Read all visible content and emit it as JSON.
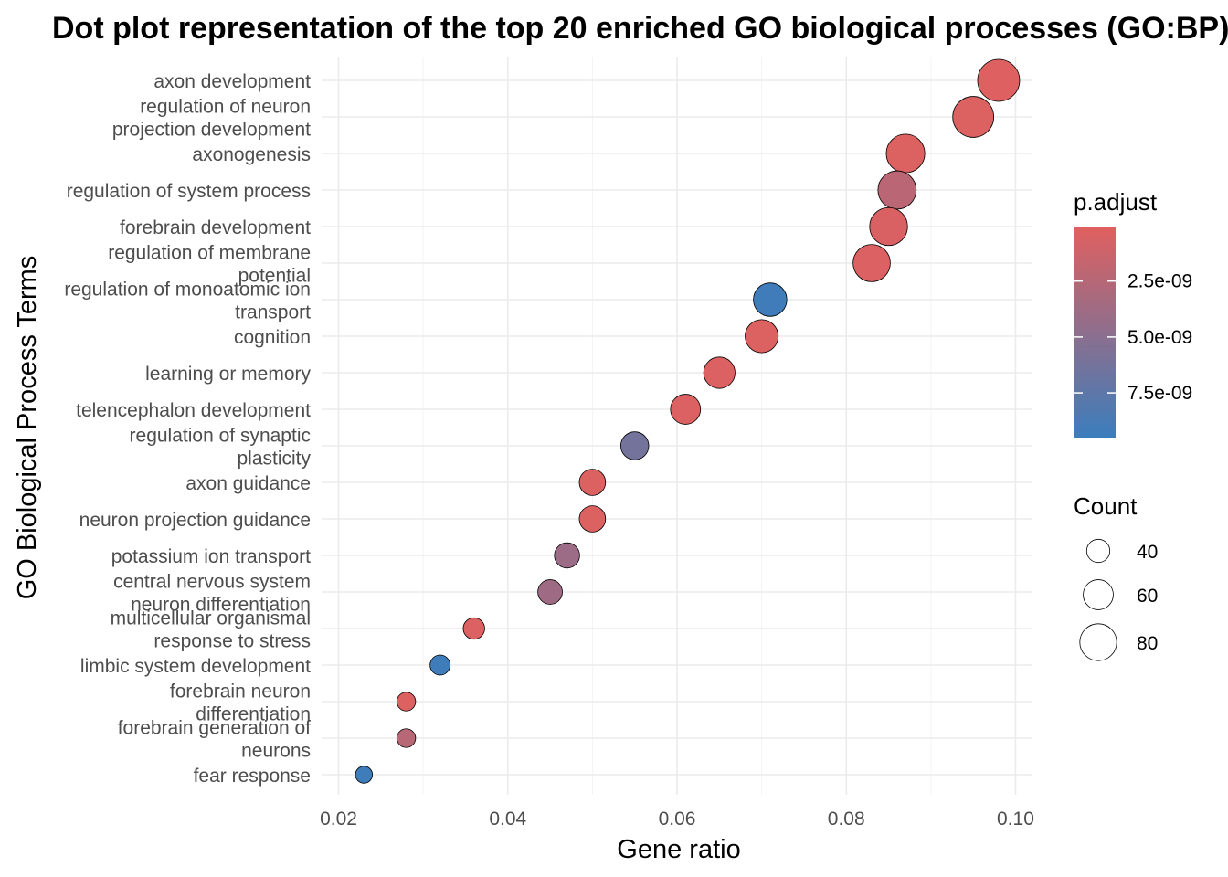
{
  "chart_data": {
    "type": "scatter",
    "title": "Dot plot representation of the top 20 enriched GO biological processes (GO:BP)",
    "xlabel": "Gene ratio",
    "ylabel": "GO Biological Process Terms",
    "xlim": [
      0.018,
      0.102
    ],
    "x_ticks": [
      "0.02",
      "0.04",
      "0.06",
      "0.08",
      "0.10"
    ],
    "grid": true,
    "legend_position": "right",
    "color_legend": {
      "title": "p.adjust",
      "low_color": "#e0605f",
      "high_color": "#3b7dbc",
      "range": [
        1e-10,
        9.5e-09
      ],
      "ticks": [
        {
          "value": 2.5e-09,
          "label": "2.5e-09"
        },
        {
          "value": 5e-09,
          "label": "5.0e-09"
        },
        {
          "value": 7.5e-09,
          "label": "7.5e-09"
        }
      ]
    },
    "size_legend": {
      "title": "Count",
      "range": [
        15,
        95
      ],
      "ticks": [
        {
          "value": 40,
          "label": "40"
        },
        {
          "value": 60,
          "label": "60"
        },
        {
          "value": 80,
          "label": "80"
        }
      ]
    },
    "points": [
      {
        "term": [
          "axon development"
        ],
        "gene_ratio": 0.098,
        "p_adjust": 2e-10,
        "count": 95
      },
      {
        "term": [
          "regulation of neuron",
          "projection development"
        ],
        "gene_ratio": 0.095,
        "p_adjust": 3e-10,
        "count": 92
      },
      {
        "term": [
          "axonogenesis"
        ],
        "gene_ratio": 0.087,
        "p_adjust": 3e-10,
        "count": 85
      },
      {
        "term": [
          "regulation of system process"
        ],
        "gene_ratio": 0.086,
        "p_adjust": 2.2e-09,
        "count": 84
      },
      {
        "term": [
          "forebrain development"
        ],
        "gene_ratio": 0.085,
        "p_adjust": 5e-10,
        "count": 83
      },
      {
        "term": [
          "regulation of membrane",
          "potential"
        ],
        "gene_ratio": 0.083,
        "p_adjust": 4e-10,
        "count": 81
      },
      {
        "term": [
          "regulation of monoatomic ion",
          "transport"
        ],
        "gene_ratio": 0.071,
        "p_adjust": 9.2e-09,
        "count": 70
      },
      {
        "term": [
          "cognition"
        ],
        "gene_ratio": 0.07,
        "p_adjust": 3e-10,
        "count": 69
      },
      {
        "term": [
          "learning or memory"
        ],
        "gene_ratio": 0.065,
        "p_adjust": 4e-10,
        "count": 64
      },
      {
        "term": [
          "telencephalon development"
        ],
        "gene_ratio": 0.061,
        "p_adjust": 4e-10,
        "count": 60
      },
      {
        "term": [
          "regulation of synaptic",
          "plasticity"
        ],
        "gene_ratio": 0.055,
        "p_adjust": 6.3e-09,
        "count": 54
      },
      {
        "term": [
          "axon guidance"
        ],
        "gene_ratio": 0.05,
        "p_adjust": 3e-10,
        "count": 49
      },
      {
        "term": [
          "neuron projection guidance"
        ],
        "gene_ratio": 0.05,
        "p_adjust": 3e-10,
        "count": 49
      },
      {
        "term": [
          "potassium ion transport"
        ],
        "gene_ratio": 0.047,
        "p_adjust": 4e-09,
        "count": 46
      },
      {
        "term": [
          "central nervous system",
          "neuron differentiation"
        ],
        "gene_ratio": 0.045,
        "p_adjust": 3.8e-09,
        "count": 44
      },
      {
        "term": [
          "multicellular organismal",
          "response to stress"
        ],
        "gene_ratio": 0.036,
        "p_adjust": 4e-10,
        "count": 35
      },
      {
        "term": [
          "limbic system development"
        ],
        "gene_ratio": 0.032,
        "p_adjust": 9.3e-09,
        "count": 31
      },
      {
        "term": [
          "forebrain neuron",
          "differentiation"
        ],
        "gene_ratio": 0.028,
        "p_adjust": 3e-10,
        "count": 27
      },
      {
        "term": [
          "forebrain generation of",
          "neurons"
        ],
        "gene_ratio": 0.028,
        "p_adjust": 2.4e-09,
        "count": 27
      },
      {
        "term": [
          "fear response"
        ],
        "gene_ratio": 0.023,
        "p_adjust": 9.3e-09,
        "count": 22
      }
    ]
  }
}
